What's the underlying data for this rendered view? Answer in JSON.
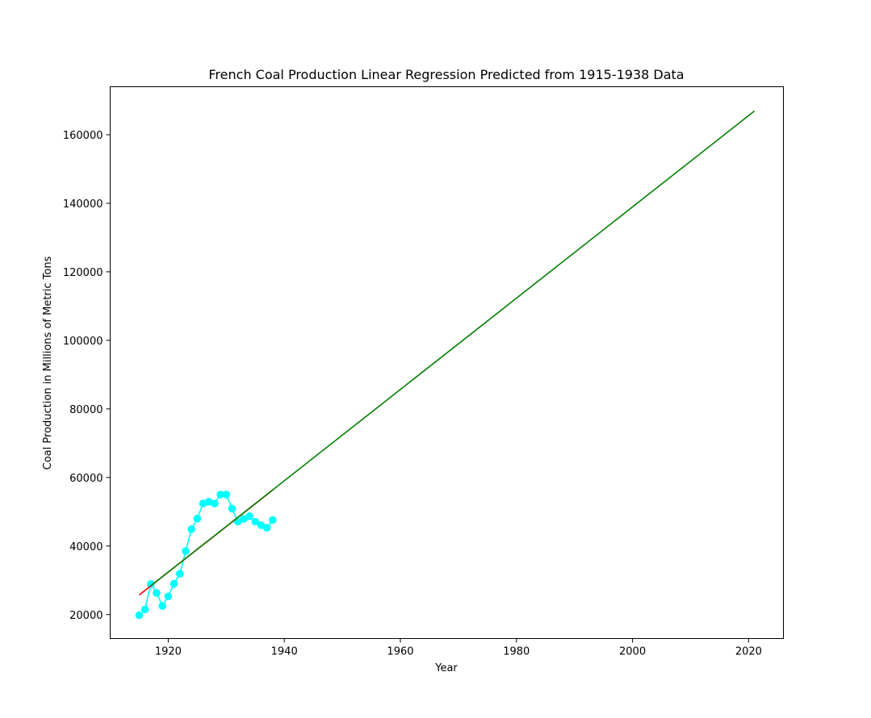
{
  "chart_data": {
    "type": "line",
    "title": "French Coal Production Linear Regression Predicted from 1915-1938 Data",
    "xlabel": "Year",
    "ylabel": "Coal Production in Millions of Metric Tons",
    "xlim": [
      1910,
      2026
    ],
    "ylim": [
      13000,
      174000
    ],
    "x_ticks": [
      1920,
      1940,
      1960,
      1980,
      2000,
      2020
    ],
    "y_ticks": [
      20000,
      40000,
      60000,
      80000,
      100000,
      120000,
      140000,
      160000
    ],
    "grid": false,
    "series": [
      {
        "kind": "line-markers",
        "color": "#00ffff",
        "x": [
          1915,
          1916,
          1917,
          1918,
          1919,
          1920,
          1921,
          1922,
          1923,
          1924,
          1925,
          1926,
          1927,
          1928,
          1929,
          1930,
          1931,
          1932,
          1933,
          1934,
          1935,
          1936,
          1937,
          1938
        ],
        "y": [
          19800,
          21500,
          28900,
          26300,
          22500,
          25300,
          29000,
          31900,
          38500,
          44900,
          48000,
          52400,
          52900,
          52400,
          55000,
          55000,
          50900,
          47100,
          47900,
          48700,
          47100,
          46100,
          45300,
          47600
        ]
      },
      {
        "kind": "line",
        "color": "#ff0000",
        "x": [
          1915,
          1938
        ],
        "y": [
          25700,
          56300
        ]
      },
      {
        "kind": "line",
        "color": "#008000",
        "x": [
          1917,
          2021
        ],
        "y": [
          28400,
          166900
        ]
      }
    ]
  }
}
